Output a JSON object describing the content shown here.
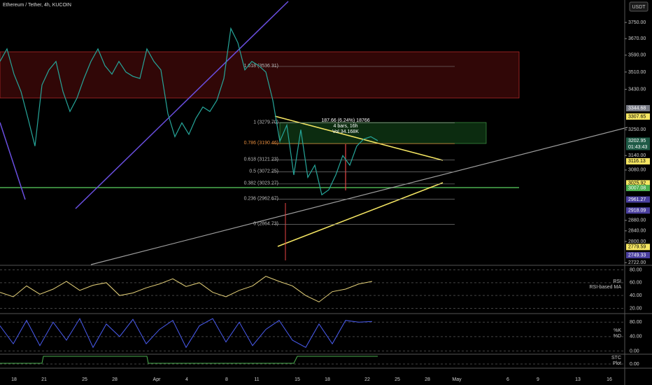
{
  "header": {
    "title": "Ethereum / Tether, 4h, KUCOIN",
    "currency": "USDT"
  },
  "price_axis": {
    "scale": "log",
    "ylim": [
      2715,
      3864
    ],
    "ticks": [
      {
        "value": 3750,
        "label": "3750.00"
      },
      {
        "value": 3670,
        "label": "3670.00"
      },
      {
        "value": 3590,
        "label": "3590.00"
      },
      {
        "value": 3510,
        "label": "3510.00"
      },
      {
        "value": 3430,
        "label": "3430.00"
      },
      {
        "value": 3250,
        "label": "3250.00"
      },
      {
        "value": 3140,
        "label": "3140.00"
      },
      {
        "value": 3080,
        "label": "3080.00"
      },
      {
        "value": 2880,
        "label": "2880.00"
      },
      {
        "value": 2840,
        "label": "2840.00"
      },
      {
        "value": 2800,
        "label": "2800.00"
      },
      {
        "value": 2722,
        "label": "2722.00"
      }
    ],
    "badges": [
      {
        "value": 3344.68,
        "label": "3344.68",
        "color": "#787b86"
      },
      {
        "value": 3307.65,
        "label": "3307.65",
        "color": "#f5e663"
      },
      {
        "value": 3202.95,
        "label": "3202.95",
        "color": "#1e5a46"
      },
      {
        "value": 3116.13,
        "label": "3116.13",
        "color": "#f5e663"
      },
      {
        "value": 3025.92,
        "label": "3025.92",
        "color": "#f5e663"
      },
      {
        "value": 3007.08,
        "label": "3007.08",
        "color": "#4caf50"
      },
      {
        "value": 2961.27,
        "label": "2961.27",
        "color": "#4a3f9e"
      },
      {
        "value": 2918.09,
        "label": "2918.09",
        "color": "#4a3f9e"
      },
      {
        "value": 2779.59,
        "label": "2779.59",
        "color": "#f5e663"
      },
      {
        "value": 2749.33,
        "label": "2749.33",
        "color": "#4a3f9e"
      }
    ],
    "countdown": "01:43:43"
  },
  "fib_levels": [
    {
      "value": 3536.31,
      "label": "1.618 (3536.31)"
    },
    {
      "value": 3279.7,
      "label": "1 (3279.70)"
    },
    {
      "value": 3190.46,
      "label": "0.786 (3190.46)"
    },
    {
      "value": 3121.23,
      "label": "0.618 (3121.23)"
    },
    {
      "value": 3072.25,
      "label": "0.5 (3072.25)"
    },
    {
      "value": 3023.27,
      "label": "0.382 (3023.27)"
    },
    {
      "value": 2962.67,
      "label": "0.236 (2962.67)"
    },
    {
      "value": 2864.73,
      "label": "0 (2864.73)"
    }
  ],
  "measure": [
    "187.66 (6.24%) 18766",
    "4 bars, 16h",
    "Vol 34.168K"
  ],
  "price_line": {
    "color": "#26a69a",
    "values": [
      3560,
      3620,
      3500,
      3420,
      3300,
      3180,
      3450,
      3520,
      3560,
      3420,
      3330,
      3390,
      3480,
      3560,
      3620,
      3540,
      3500,
      3560,
      3510,
      3490,
      3480,
      3620,
      3560,
      3520,
      3320,
      3220,
      3280,
      3230,
      3300,
      3350,
      3330,
      3380,
      3480,
      3720,
      3650,
      3520,
      3560,
      3540,
      3510,
      3380,
      3200,
      3270,
      3060,
      3250,
      3050,
      3100,
      2980,
      3000,
      3060,
      3140,
      3100,
      3180,
      3210,
      3220,
      3203
    ]
  },
  "rsi": {
    "labels": [
      "RSI",
      "RSI-based MA"
    ],
    "ticks": [
      {
        "value": 80,
        "label": "80.00"
      },
      {
        "value": 60,
        "label": "60.00"
      },
      {
        "value": 40,
        "label": "40.00"
      },
      {
        "value": 20,
        "label": "20.00"
      }
    ],
    "ylim": [
      14,
      86
    ],
    "values": [
      45,
      38,
      55,
      42,
      50,
      62,
      48,
      56,
      60,
      40,
      44,
      52,
      58,
      66,
      54,
      60,
      45,
      38,
      48,
      55,
      70,
      62,
      55,
      40,
      30,
      46,
      50,
      58,
      62
    ]
  },
  "stoch": {
    "labels": [
      "%K",
      "%D"
    ],
    "ticks": [
      {
        "value": 80,
        "label": "80.00"
      },
      {
        "value": 40,
        "label": "40.00"
      },
      {
        "value": 0,
        "label": "0.00"
      }
    ],
    "ylim": [
      -5,
      100
    ],
    "values": [
      70,
      20,
      85,
      15,
      80,
      30,
      90,
      10,
      75,
      40,
      88,
      20,
      60,
      85,
      10,
      70,
      90,
      25,
      80,
      15,
      60,
      85,
      30,
      10,
      75,
      20,
      85,
      80,
      82
    ]
  },
  "stc": {
    "labels": [
      "STC",
      "Plot"
    ],
    "ticks": [
      {
        "value": 0,
        "label": "0.00"
      }
    ]
  },
  "date_axis": [
    "18",
    "21",
    "25",
    "28",
    "Apr",
    "4",
    "8",
    "11",
    "15",
    "18",
    "22",
    "25",
    "28",
    "May",
    "6",
    "9",
    "13",
    "16"
  ]
}
